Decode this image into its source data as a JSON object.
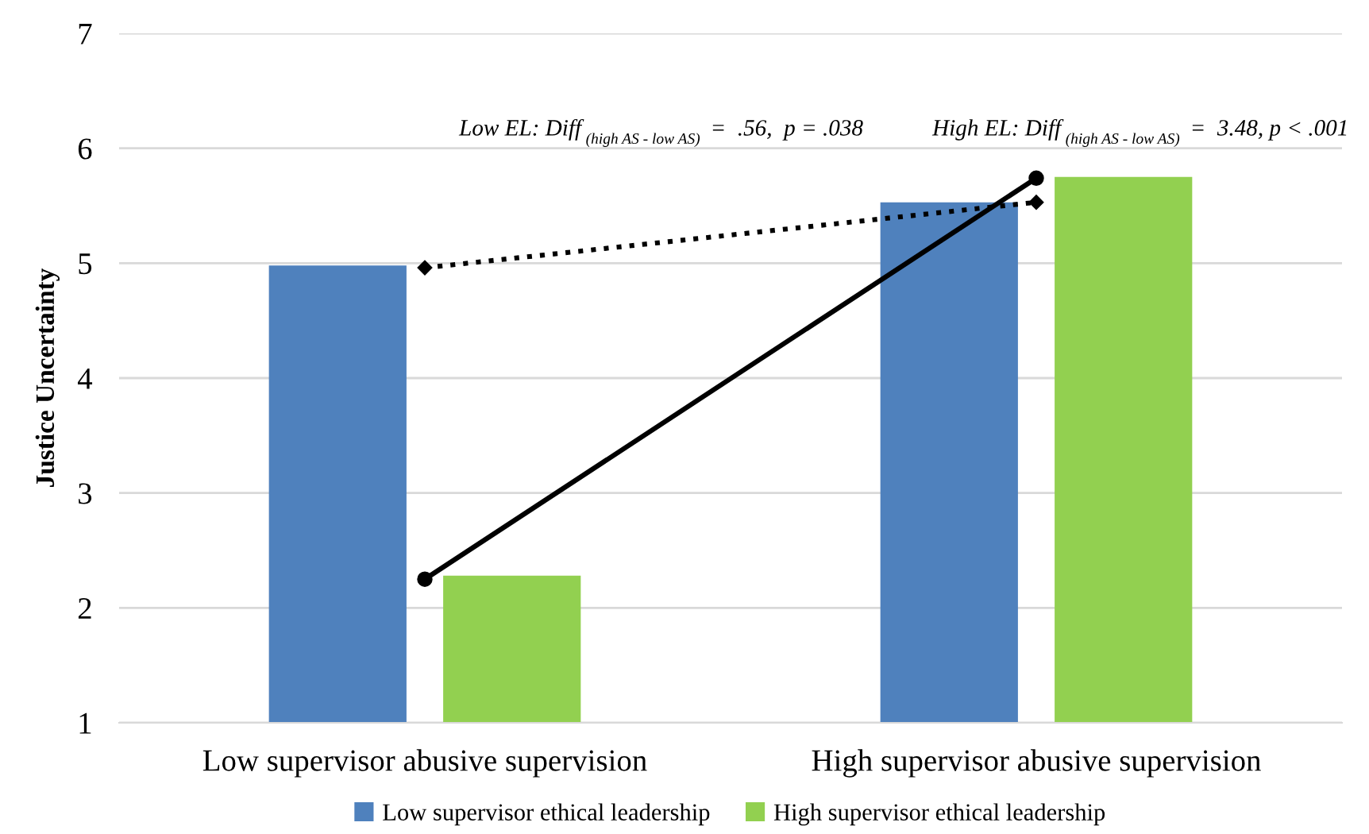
{
  "chart_data": {
    "type": "bar",
    "ylabel": "Justice Uncertainty",
    "categories": [
      "Low supervisor abusive supervision",
      "High supervisor abusive supervision"
    ],
    "series": [
      {
        "name": "Low supervisor ethical leadership",
        "color": "#4f81bd",
        "values": [
          4.98,
          5.53
        ]
      },
      {
        "name": "High supervisor ethical leadership",
        "color": "#92d050",
        "values": [
          2.28,
          5.75
        ]
      },
      {
        "type": "line",
        "color": "#000000",
        "values": [
          4.96,
          5.53
        ],
        "line_style": "dotted",
        "marker": "diamond"
      },
      {
        "type": "line",
        "color": "#000000",
        "values": [
          2.25,
          5.74
        ],
        "line_style": "solid",
        "marker": "circle"
      }
    ],
    "annotations": [
      "Low EL: Diff$_{(high AS - low AS)}$ =  .56,  p = .038",
      "High EL: Diff$_{(high AS - low AS)}$ =  3.48, p < .001"
    ],
    "ylim": [
      1,
      7
    ],
    "yticks": [
      1,
      2,
      3,
      4,
      5,
      6,
      7
    ],
    "grid": "y",
    "legend": "bottom"
  }
}
